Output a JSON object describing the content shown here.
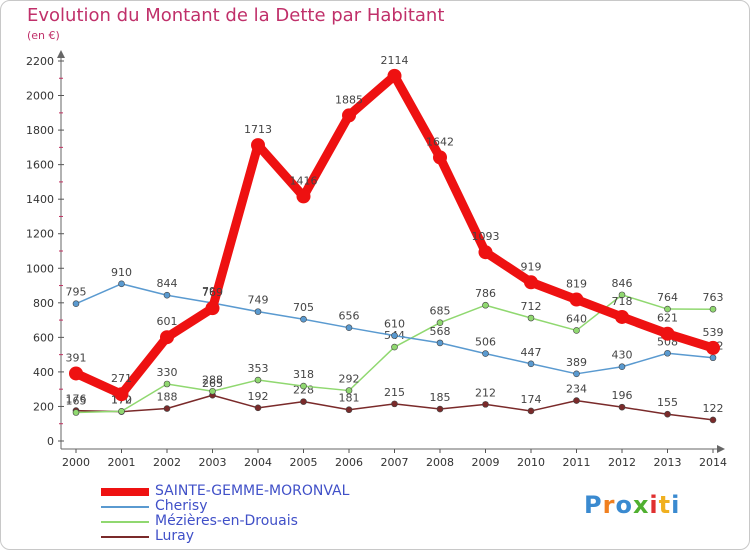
{
  "chart_data": {
    "type": "line",
    "title": "Evolution du Montant de la Dette par Habitant",
    "subtitle": "(en €)",
    "xlabel": "",
    "ylabel": "",
    "ylim": [
      0,
      2200
    ],
    "yticks": [
      "0",
      "200",
      "400",
      "600",
      "800",
      "1000",
      "1200",
      "1400",
      "1600",
      "1800",
      "2000",
      "2200"
    ],
    "categories": [
      "2000",
      "2001",
      "2002",
      "2003",
      "2004",
      "2005",
      "2006",
      "2007",
      "2008",
      "2009",
      "2010",
      "2011",
      "2012",
      "2013",
      "2014"
    ],
    "grid": false,
    "legend_position": "bottom-left",
    "series": [
      {
        "name": "Luray",
        "color": "#7a2a2a",
        "values": [
          176,
          170,
          188,
          265,
          192,
          228,
          181,
          215,
          185,
          212,
          174,
          234,
          196,
          155,
          122
        ]
      },
      {
        "name": "Mézières-en-Drouais",
        "color": "#90d870",
        "values": [
          165,
          172,
          330,
          288,
          353,
          318,
          292,
          544,
          685,
          786,
          712,
          640,
          846,
          764,
          763
        ]
      },
      {
        "name": "Cherisy",
        "color": "#5a9ad0",
        "values": [
          795,
          910,
          844,
          799,
          749,
          705,
          656,
          610,
          568,
          506,
          447,
          389,
          430,
          508,
          482
        ]
      },
      {
        "name": "SAINTE-GEMME-MORONVAL",
        "color": "#ee1111",
        "values": [
          391,
          271,
          601,
          769,
          1713,
          1416,
          1885,
          2114,
          1642,
          1093,
          919,
          819,
          718,
          621,
          539
        ]
      }
    ],
    "legend": [
      {
        "label": "SAINTE-GEMME-MORONVAL",
        "color": "#ee1111",
        "width": 8
      },
      {
        "label": "Cherisy",
        "color": "#5a9ad0",
        "width": 2
      },
      {
        "label": "Mézières-en-Drouais",
        "color": "#90d870",
        "width": 2
      },
      {
        "label": "Luray",
        "color": "#7a2a2a",
        "width": 2
      }
    ]
  },
  "brand": {
    "letters": [
      "P",
      "r",
      "o",
      "x",
      "i",
      "t",
      "i"
    ],
    "colors": [
      "#3a8ad0",
      "#f08020",
      "#3a8ad0",
      "#50b030",
      "#e03030",
      "#f0b020",
      "#3a8ad0"
    ]
  }
}
